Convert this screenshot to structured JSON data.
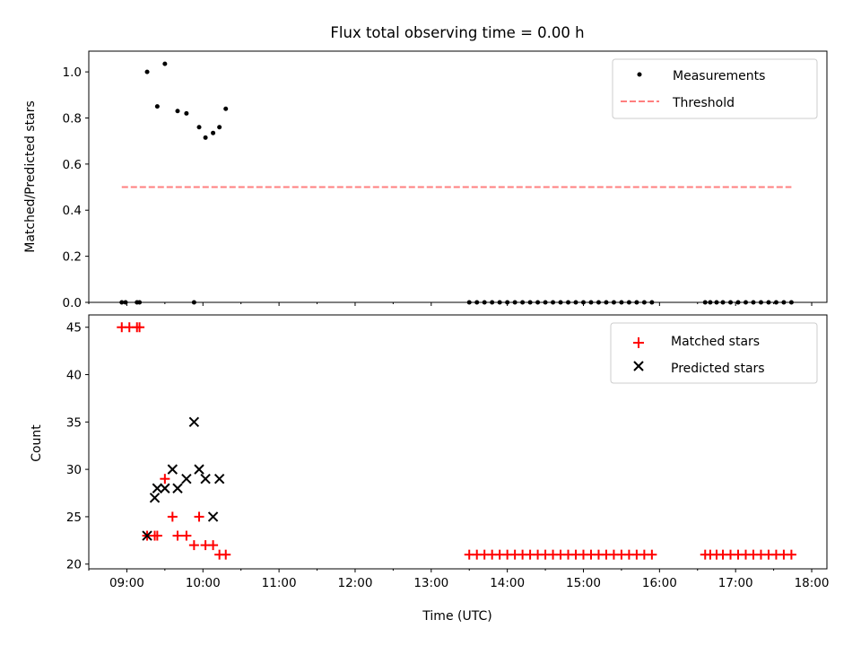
{
  "title": "Flux total observing time = 0.00 h",
  "colors": {
    "measurement": "#000000",
    "threshold": "#ff7f7f",
    "matched": "#ff0000",
    "predicted": "#000000"
  },
  "chart_data": [
    {
      "type": "scatter",
      "ylabel": "Matched/Predicted stars",
      "xlim": [
        "08:30",
        "18:12"
      ],
      "ylim": [
        0,
        1.09
      ],
      "yticks": [
        "0.0",
        "0.2",
        "0.4",
        "0.6",
        "0.8",
        "1.0"
      ],
      "grid": false,
      "legend_position": "top-right",
      "legend": [
        "Measurements",
        "Threshold"
      ],
      "series": [
        {
          "name": "Measurements",
          "marker": "dot",
          "x": [
            "08:56",
            "08:59",
            "09:08",
            "09:10",
            "09:16",
            "09:24",
            "09:30",
            "09:40",
            "09:47",
            "09:53",
            "09:57",
            "10:02",
            "10:08",
            "10:13",
            "10:18",
            "13:30",
            "13:36",
            "13:42",
            "13:48",
            "13:54",
            "14:00",
            "14:06",
            "14:12",
            "14:18",
            "14:24",
            "14:30",
            "14:36",
            "14:42",
            "14:48",
            "14:54",
            "15:00",
            "15:06",
            "15:12",
            "15:18",
            "15:24",
            "15:30",
            "15:36",
            "15:42",
            "15:48",
            "15:54",
            "16:36",
            "16:40",
            "16:45",
            "16:50",
            "16:56",
            "17:02",
            "17:08",
            "17:14",
            "17:20",
            "17:26",
            "17:32",
            "17:38",
            "17:44"
          ],
          "y": [
            0,
            0,
            0,
            0,
            1.0,
            0.85,
            1.035,
            0.83,
            0.82,
            0,
            0.76,
            0.715,
            0.735,
            0.76,
            0.84,
            0,
            0,
            0,
            0,
            0,
            0,
            0,
            0,
            0,
            0,
            0,
            0,
            0,
            0,
            0,
            0,
            0,
            0,
            0,
            0,
            0,
            0,
            0,
            0,
            0,
            0,
            0,
            0,
            0,
            0,
            0,
            0,
            0,
            0,
            0,
            0,
            0,
            0
          ]
        },
        {
          "name": "Threshold",
          "style": "dashed",
          "x": [
            "08:56",
            "17:44"
          ],
          "y": [
            0.5,
            0.5
          ]
        }
      ]
    },
    {
      "type": "scatter",
      "xlabel": "Time (UTC)",
      "ylabel": "Count",
      "xlim": [
        "08:30",
        "18:12"
      ],
      "ylim": [
        19.5,
        46.3
      ],
      "xticks": [
        "09:00",
        "10:00",
        "11:00",
        "12:00",
        "13:00",
        "14:00",
        "15:00",
        "16:00",
        "17:00",
        "18:00"
      ],
      "yticks": [
        "20",
        "25",
        "30",
        "35",
        "40",
        "45"
      ],
      "grid": false,
      "legend_position": "top-right",
      "legend": [
        "Matched stars",
        "Predicted stars"
      ],
      "series": [
        {
          "name": "Matched stars",
          "marker": "plus",
          "x": [
            "08:56",
            "09:02",
            "09:08",
            "09:10",
            "09:16",
            "09:22",
            "09:24",
            "09:30",
            "09:36",
            "09:40",
            "09:47",
            "09:53",
            "09:57",
            "10:02",
            "10:08",
            "10:13",
            "10:18",
            "13:30",
            "13:36",
            "13:42",
            "13:48",
            "13:54",
            "14:00",
            "14:06",
            "14:12",
            "14:18",
            "14:24",
            "14:30",
            "14:36",
            "14:42",
            "14:48",
            "14:54",
            "15:00",
            "15:06",
            "15:12",
            "15:18",
            "15:24",
            "15:30",
            "15:36",
            "15:42",
            "15:48",
            "15:54",
            "16:36",
            "16:40",
            "16:45",
            "16:50",
            "16:56",
            "17:02",
            "17:08",
            "17:14",
            "17:20",
            "17:26",
            "17:32",
            "17:38",
            "17:44"
          ],
          "y": [
            45,
            45,
            45,
            45,
            23,
            23,
            23,
            29,
            25,
            23,
            23,
            22,
            25,
            22,
            22,
            21,
            21,
            21,
            21,
            21,
            21,
            21,
            21,
            21,
            21,
            21,
            21,
            21,
            21,
            21,
            21,
            21,
            21,
            21,
            21,
            21,
            21,
            21,
            21,
            21,
            21,
            21,
            21,
            21,
            21,
            21,
            21,
            21,
            21,
            21,
            21,
            21,
            21,
            21,
            21
          ]
        },
        {
          "name": "Predicted stars",
          "marker": "x",
          "x": [
            "09:16",
            "09:22",
            "09:24",
            "09:30",
            "09:36",
            "09:40",
            "09:47",
            "09:53",
            "09:57",
            "10:02",
            "10:08",
            "10:13"
          ],
          "y": [
            23,
            27,
            28,
            28,
            30,
            28,
            29,
            35,
            30,
            29,
            25,
            29
          ]
        }
      ]
    }
  ]
}
